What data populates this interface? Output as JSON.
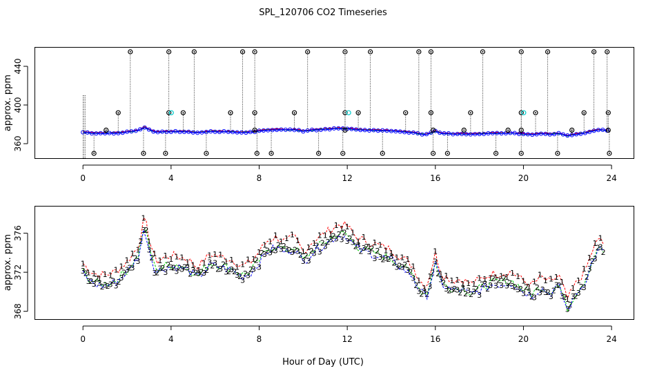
{
  "title": "SPL_120706  CO2 Timeseries",
  "xlabel": "Hour of Day (UTC)",
  "colors": {
    "series1": "#ff0000",
    "series2": "#00cc00",
    "series3": "#0000ff",
    "flag": "#000000",
    "flag2": "#00cccc"
  },
  "chart_data": [
    {
      "type": "scatter",
      "title": "SPL_120706  CO2 Timeseries",
      "ylabel": "approx. ppm",
      "xlim": [
        -2.2,
        25
      ],
      "ylim": [
        345,
        460
      ],
      "x_ticks": [
        0,
        4,
        8,
        12,
        16,
        20,
        24
      ],
      "y_ticks": [
        360,
        400,
        440
      ],
      "spike_x": [
        2.15,
        3.9,
        5.05,
        7.25,
        7.8,
        10.2,
        11.9,
        13.05,
        15.25,
        15.8,
        18.15,
        19.9,
        21.1,
        23.2,
        23.8
      ],
      "spike_y": 455,
      "mid_flag_x": [
        1.6,
        3.9,
        4.55,
        6.7,
        7.8,
        9.6,
        11.9,
        12.5,
        14.65,
        15.8,
        17.6,
        19.9,
        20.55,
        22.75,
        23.85
      ],
      "mid_flag_y": 392,
      "low_flag_x": [
        0.5,
        2.75,
        3.75,
        5.6,
        7.9,
        8.55,
        10.7,
        11.8,
        13.6,
        15.9,
        16.55,
        18.75,
        19.9,
        21.55,
        23.9
      ],
      "low_flag_y": 350,
      "near_flag_x": [
        1.05,
        7.8,
        11.9,
        15.9,
        17.3,
        19.3,
        19.9,
        22.2,
        23.85
      ],
      "near_flag_y": 374,
      "series": [
        {
          "name": "1",
          "marker": "1",
          "offset": 0.6
        },
        {
          "name": "2",
          "marker": "2",
          "offset": 0.0
        },
        {
          "name": "3",
          "marker": "3",
          "offset": 0.0
        }
      ]
    },
    {
      "type": "scatter",
      "ylabel": "approx. ppm",
      "xlim": [
        -2.2,
        25
      ],
      "ylim": [
        367.2,
        378.8
      ],
      "x_ticks": [
        0,
        4,
        8,
        12,
        16,
        20,
        24
      ],
      "y_ticks": [
        368,
        372,
        376
      ],
      "series": [
        {
          "name": "1",
          "marker": "1",
          "offset": 1.1
        },
        {
          "name": "2",
          "marker": "2",
          "offset": 0.2
        },
        {
          "name": "3",
          "marker": "3",
          "offset": 0.0
        }
      ],
      "base_curve": {
        "x": [
          0.0,
          0.3,
          0.6,
          1.0,
          1.5,
          2.0,
          2.5,
          2.8,
          3.0,
          3.3,
          3.8,
          4.2,
          4.8,
          5.2,
          5.8,
          6.2,
          6.8,
          7.2,
          7.6,
          8.0,
          8.4,
          8.8,
          9.2,
          9.6,
          10.0,
          10.4,
          10.8,
          11.2,
          11.6,
          12.0,
          12.4,
          12.8,
          13.2,
          13.6,
          14.0,
          14.5,
          15.0,
          15.3,
          15.6,
          16.0,
          16.3,
          16.8,
          17.2,
          17.6,
          18.0,
          18.5,
          19.0,
          19.5,
          20.0,
          20.4,
          20.8,
          21.2,
          21.6,
          22.0,
          22.4,
          22.8,
          23.2,
          23.5,
          23.7
        ],
        "y": [
          371.8,
          371.1,
          370.7,
          370.6,
          371.0,
          372.0,
          373.5,
          376.6,
          374.4,
          372.0,
          372.5,
          372.6,
          372.2,
          371.4,
          372.8,
          372.5,
          372.2,
          371.5,
          371.9,
          373.0,
          374.2,
          374.5,
          374.0,
          374.5,
          373.0,
          374.0,
          374.6,
          375.2,
          375.8,
          375.6,
          374.5,
          374.1,
          373.8,
          373.5,
          373.2,
          372.4,
          371.5,
          370.0,
          369.5,
          372.8,
          370.7,
          370.1,
          370.2,
          369.7,
          370.1,
          370.7,
          370.8,
          370.9,
          370.0,
          369.6,
          370.4,
          369.8,
          370.6,
          368.1,
          369.8,
          371.0,
          373.5,
          374.4,
          373.5
        ]
      }
    }
  ]
}
